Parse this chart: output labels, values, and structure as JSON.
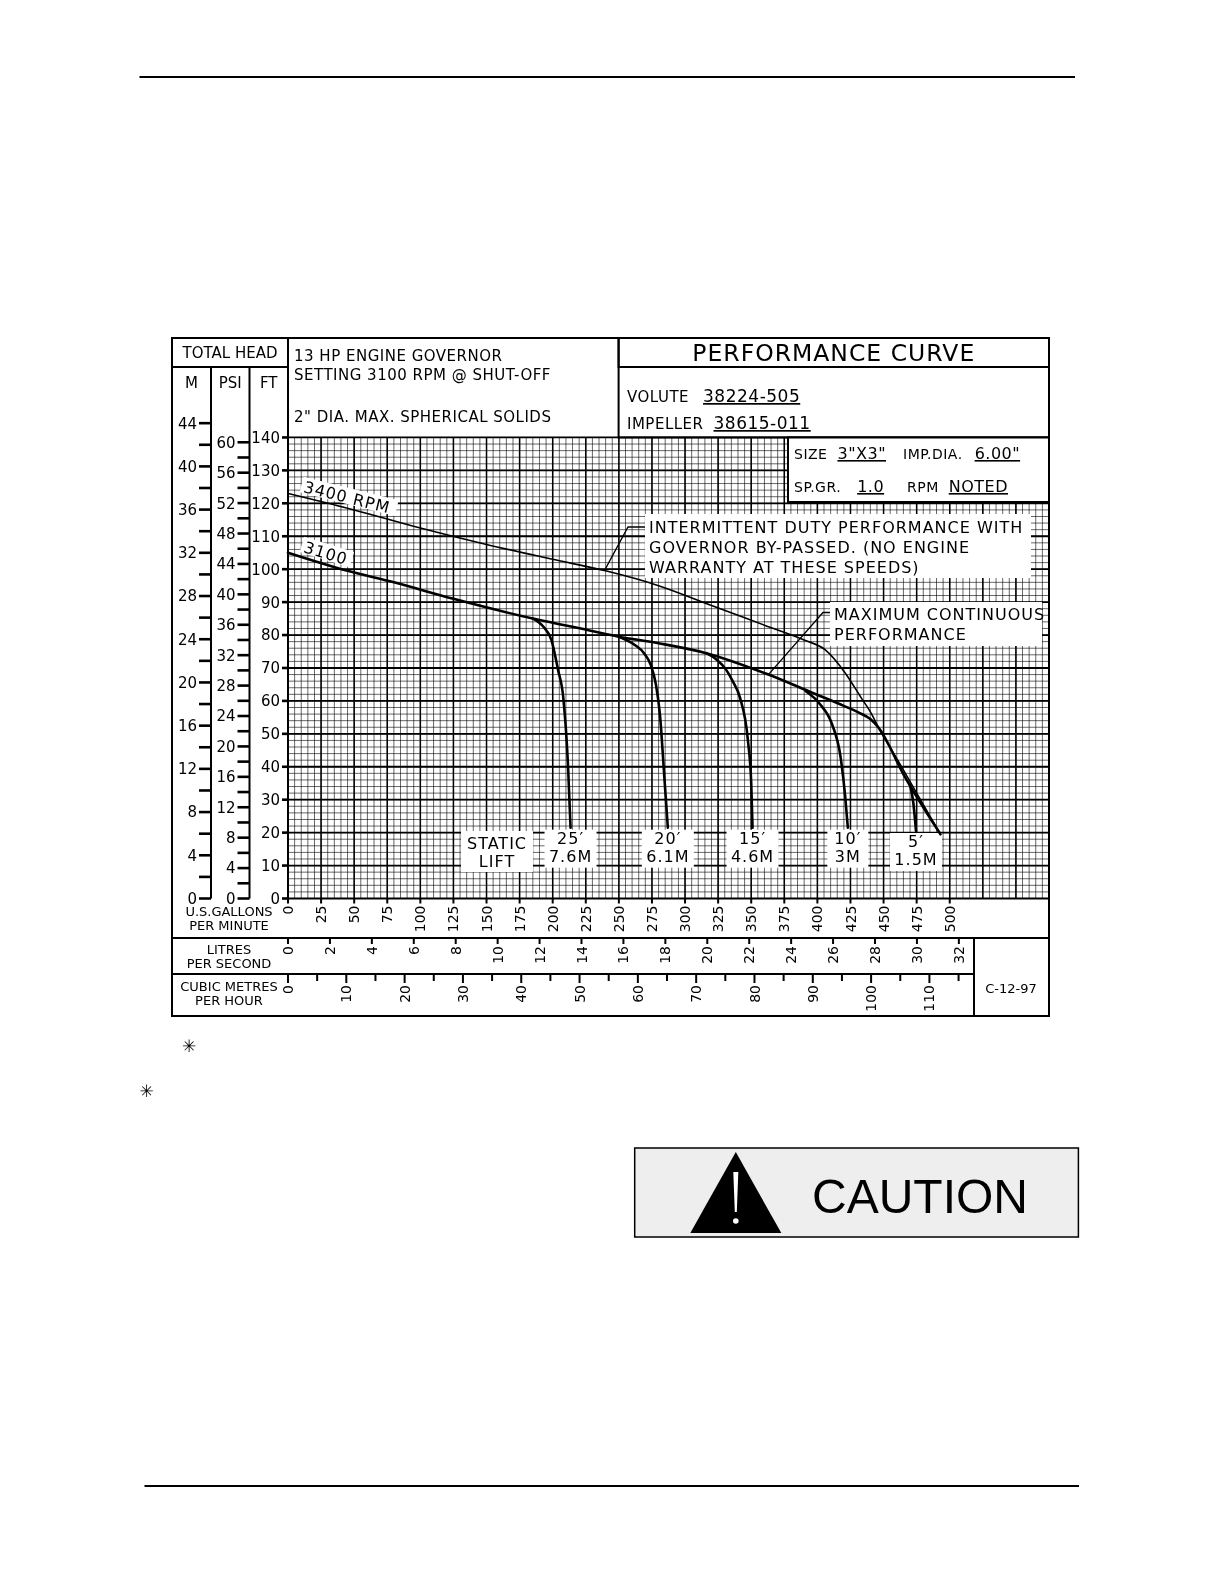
{
  "chart_data": {
    "type": "line",
    "title": "PERFORMANCE CURVE",
    "xlabel": "U.S.GALLONS PER MINUTE",
    "x2label": "LITRES PER SECOND",
    "ylabel": "FT",
    "y2label": "PSI",
    "y3label": "M",
    "xlim": [
      0,
      575
    ],
    "xticks": [
      0,
      25,
      50,
      75,
      100,
      125,
      150,
      175,
      200,
      225,
      250,
      275,
      300,
      325,
      350,
      375,
      400,
      425,
      450,
      475,
      500
    ],
    "x2lim": [
      0,
      36.3
    ],
    "x2ticks": [
      0,
      2,
      4,
      6,
      8,
      10,
      12,
      14,
      16,
      18,
      20,
      22,
      24,
      26,
      28,
      30,
      32
    ],
    "ylim": [
      0,
      170.2
    ],
    "yticks": [
      0,
      10,
      20,
      30,
      40,
      50,
      60,
      70,
      80,
      90,
      100,
      110,
      120,
      130,
      140
    ],
    "y2lim": [
      0,
      69.9
    ],
    "y2ticks": [
      0,
      4,
      8,
      12,
      16,
      20,
      24,
      28,
      32,
      36,
      40,
      44,
      48,
      52,
      56,
      60
    ],
    "y3lim": [
      0,
      49.2
    ],
    "y3ticks": [
      0,
      4,
      8,
      12,
      16,
      20,
      24,
      28,
      32,
      36,
      40,
      44
    ],
    "grid": true,
    "series": [
      {
        "name": "3400 RPM",
        "color": "#000000",
        "x": [
          0,
          50,
          100,
          150,
          200,
          240,
          280,
          320,
          360,
          390,
          406,
          421,
          433,
          441,
          446,
          460,
          475,
          493
        ],
        "values": [
          123,
          118,
          112.5,
          107.5,
          103,
          99.5,
          95,
          89,
          83,
          78.5,
          75.5,
          68.5,
          61,
          56,
          52,
          42.5,
          32,
          19.5
        ]
      },
      {
        "name": "3100",
        "color": "#000000",
        "x": [
          0,
          45,
          80,
          125,
          185,
          215,
          250,
          280,
          316,
          363,
          396,
          420,
          431,
          440,
          446,
          466,
          493
        ],
        "values": [
          105,
          99.5,
          96,
          91,
          85,
          82.5,
          79.5,
          77.5,
          74.5,
          68,
          62.5,
          58.5,
          56.5,
          54.5,
          52,
          37,
          19.5
        ]
      },
      {
        "name": "25′ 7.6M",
        "color": "#000000",
        "x": [
          185,
          193,
          199,
          204,
          208,
          211.5,
          213.5
        ],
        "values": [
          85,
          82.5,
          78.5,
          69.5,
          61,
          41,
          21.5
        ]
      },
      {
        "name": "20′ 6.1M",
        "color": "#000000",
        "x": [
          250,
          262,
          269,
          274,
          278,
          281,
          284.5,
          287
        ],
        "values": [
          79.5,
          77,
          74.5,
          71,
          65,
          56,
          36,
          21.5
        ]
      },
      {
        "name": "15′ 4.6M",
        "color": "#000000",
        "x": [
          316,
          324,
          331,
          336,
          341.5,
          347.5,
          350,
          351
        ],
        "values": [
          74.5,
          72.5,
          69.5,
          66,
          61,
          48,
          35,
          21.5
        ]
      },
      {
        "name": "10′ 3M",
        "color": "#000000",
        "x": [
          391,
          402,
          411,
          417.5,
          421,
          423
        ],
        "values": [
          63,
          59,
          53,
          43,
          31,
          21.5
        ]
      },
      {
        "name": "5′ 1.5M",
        "color": "#000000",
        "x": [
          470,
          472.5,
          474.5
        ],
        "values": [
          34.5,
          29,
          20.5
        ]
      }
    ],
    "annotations": [
      "TOTAL HEAD",
      "13 HP ENGINE GOVERNOR SETTING 3100 RPM @ SHUT-OFF",
      "2\" DIA. MAX. SPHERICAL SOLIDS",
      "VOLUTE 38224-505",
      "IMPELLER 38615-011",
      "SIZE 3\"X3\"",
      "IMP.DIA. 6.00\"",
      "SP.GR. 1.0",
      "RPM NOTED",
      {
        "text": "INTERMITTENT DUTY PERFORMANCE WITH GOVERNOR BY-PASSED. (NO ENGINE WARRANTY AT THESE SPEEDS)",
        "x": 239,
        "y": 99.5
      },
      {
        "text": "MAXIMUM CONTINUOUS PERFORMANCE",
        "x": 363,
        "y": 68
      },
      "STATIC LIFT",
      "C-12-97",
      "✳",
      "✳",
      "CAUTION",
      "CUBIC METRES PER HOUR",
      "0",
      "10",
      "20",
      "30",
      "40",
      "50",
      "60",
      "70",
      "80",
      "90",
      "100",
      "110"
    ]
  }
}
